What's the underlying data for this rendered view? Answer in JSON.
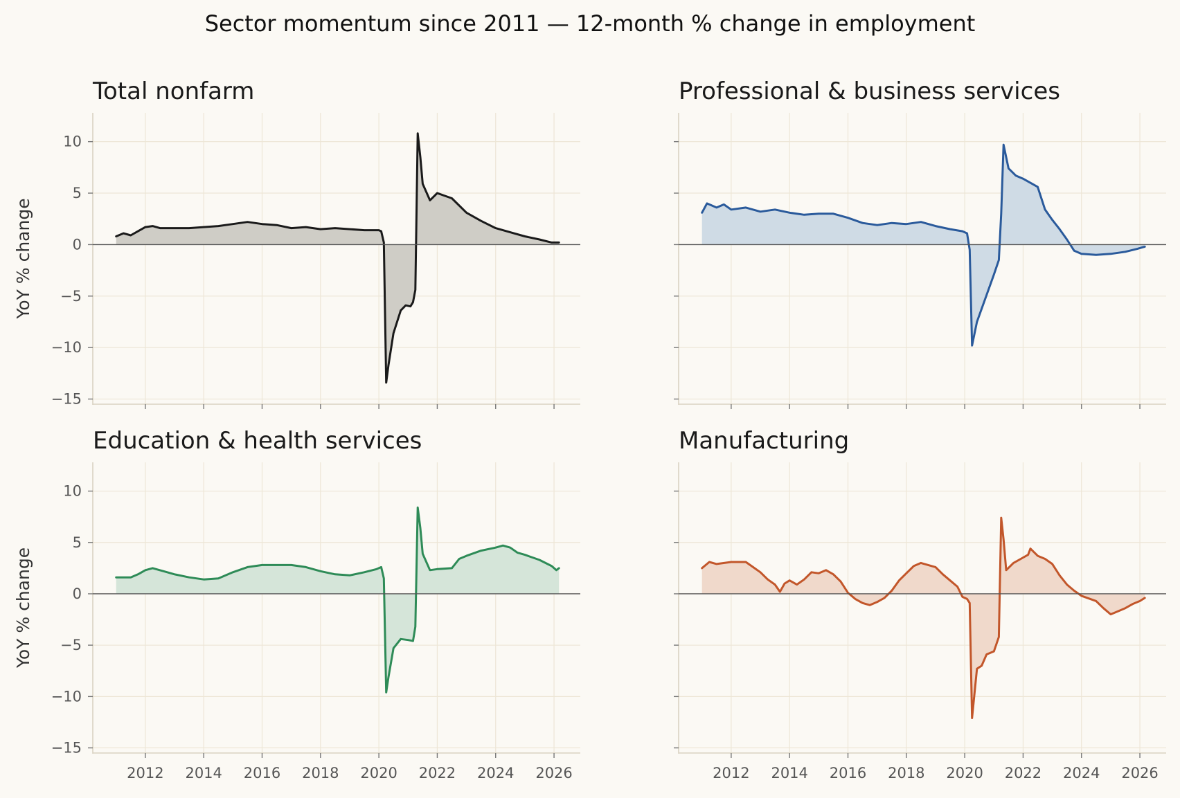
{
  "figure": {
    "title": "Sector momentum since 2011 — 12-month % change in employment",
    "background": "#fbf9f4",
    "grid_color": "#ede6d6",
    "spine_color": "#d9d2c2",
    "tick_label_color": "#555555"
  },
  "chart_data": [
    {
      "type": "area",
      "title": "Total nonfarm",
      "ylabel": "YoY % change",
      "xlabel": "",
      "color": "#1a1a1a",
      "fill": "#cfcdc6",
      "xlim": [
        2010.2,
        2026.9
      ],
      "ylim": [
        -15.5,
        12.8
      ],
      "xticks": [
        2012,
        2014,
        2016,
        2018,
        2020,
        2022,
        2024,
        2026
      ],
      "yticks": [
        10,
        5,
        0,
        -5,
        -10,
        -15
      ],
      "show_xtick_labels": false,
      "show_ytick_labels": true,
      "grid": true,
      "series": [
        {
          "points": [
            [
              2011.0,
              0.8
            ],
            [
              2011.25,
              1.1
            ],
            [
              2011.5,
              0.9
            ],
            [
              2011.75,
              1.3
            ],
            [
              2012.0,
              1.7
            ],
            [
              2012.25,
              1.8
            ],
            [
              2012.5,
              1.6
            ],
            [
              2012.75,
              1.6
            ],
            [
              2013.0,
              1.6
            ],
            [
              2013.5,
              1.6
            ],
            [
              2014.0,
              1.7
            ],
            [
              2014.5,
              1.8
            ],
            [
              2015.0,
              2.0
            ],
            [
              2015.5,
              2.2
            ],
            [
              2016.0,
              2.0
            ],
            [
              2016.5,
              1.9
            ],
            [
              2017.0,
              1.6
            ],
            [
              2017.5,
              1.7
            ],
            [
              2018.0,
              1.5
            ],
            [
              2018.5,
              1.6
            ],
            [
              2019.0,
              1.5
            ],
            [
              2019.5,
              1.4
            ],
            [
              2020.0,
              1.4
            ],
            [
              2020.08,
              1.3
            ],
            [
              2020.17,
              0.2
            ],
            [
              2020.25,
              -13.4
            ],
            [
              2020.33,
              -11.7
            ],
            [
              2020.5,
              -8.6
            ],
            [
              2020.75,
              -6.4
            ],
            [
              2020.92,
              -5.9
            ],
            [
              2021.08,
              -6.0
            ],
            [
              2021.17,
              -5.6
            ],
            [
              2021.25,
              -4.4
            ],
            [
              2021.33,
              10.8
            ],
            [
              2021.42,
              8.5
            ],
            [
              2021.5,
              5.9
            ],
            [
              2021.75,
              4.3
            ],
            [
              2022.0,
              5.0
            ],
            [
              2022.5,
              4.5
            ],
            [
              2023.0,
              3.1
            ],
            [
              2023.5,
              2.3
            ],
            [
              2024.0,
              1.6
            ],
            [
              2024.5,
              1.2
            ],
            [
              2025.0,
              0.8
            ],
            [
              2025.5,
              0.5
            ],
            [
              2025.92,
              0.2
            ],
            [
              2026.17,
              0.2
            ]
          ]
        }
      ]
    },
    {
      "type": "area",
      "title": "Professional & business services",
      "ylabel": "",
      "xlabel": "",
      "color": "#2a5a9b",
      "fill": "#cfdbe5",
      "xlim": [
        2010.2,
        2026.9
      ],
      "ylim": [
        -15.5,
        12.8
      ],
      "xticks": [
        2012,
        2014,
        2016,
        2018,
        2020,
        2022,
        2024,
        2026
      ],
      "yticks": [
        10,
        5,
        0,
        -5,
        -10,
        -15
      ],
      "show_xtick_labels": false,
      "show_ytick_labels": false,
      "grid": true,
      "series": [
        {
          "points": [
            [
              2011.0,
              3.1
            ],
            [
              2011.17,
              4.0
            ],
            [
              2011.5,
              3.6
            ],
            [
              2011.75,
              3.9
            ],
            [
              2012.0,
              3.4
            ],
            [
              2012.5,
              3.6
            ],
            [
              2013.0,
              3.2
            ],
            [
              2013.5,
              3.4
            ],
            [
              2014.0,
              3.1
            ],
            [
              2014.5,
              2.9
            ],
            [
              2015.0,
              3.0
            ],
            [
              2015.5,
              3.0
            ],
            [
              2016.0,
              2.6
            ],
            [
              2016.5,
              2.1
            ],
            [
              2017.0,
              1.9
            ],
            [
              2017.5,
              2.1
            ],
            [
              2018.0,
              2.0
            ],
            [
              2018.5,
              2.2
            ],
            [
              2019.0,
              1.8
            ],
            [
              2019.5,
              1.5
            ],
            [
              2019.92,
              1.3
            ],
            [
              2020.08,
              1.1
            ],
            [
              2020.17,
              -0.5
            ],
            [
              2020.25,
              -9.8
            ],
            [
              2020.42,
              -7.5
            ],
            [
              2020.75,
              -4.9
            ],
            [
              2021.0,
              -2.9
            ],
            [
              2021.17,
              -1.5
            ],
            [
              2021.25,
              3.0
            ],
            [
              2021.33,
              9.7
            ],
            [
              2021.5,
              7.4
            ],
            [
              2021.75,
              6.7
            ],
            [
              2022.0,
              6.4
            ],
            [
              2022.5,
              5.6
            ],
            [
              2022.75,
              3.4
            ],
            [
              2023.0,
              2.4
            ],
            [
              2023.25,
              1.5
            ],
            [
              2023.5,
              0.5
            ],
            [
              2023.75,
              -0.6
            ],
            [
              2024.0,
              -0.9
            ],
            [
              2024.5,
              -1.0
            ],
            [
              2025.0,
              -0.9
            ],
            [
              2025.5,
              -0.7
            ],
            [
              2025.92,
              -0.4
            ],
            [
              2026.17,
              -0.2
            ]
          ]
        }
      ]
    },
    {
      "type": "area",
      "title": "Education & health services",
      "ylabel": "YoY % change",
      "xlabel": "",
      "color": "#2e8b57",
      "fill": "#d5e5d9",
      "xlim": [
        2010.2,
        2026.9
      ],
      "ylim": [
        -15.5,
        12.8
      ],
      "xticks": [
        2012,
        2014,
        2016,
        2018,
        2020,
        2022,
        2024,
        2026
      ],
      "yticks": [
        10,
        5,
        0,
        -5,
        -10,
        -15
      ],
      "show_xtick_labels": true,
      "show_ytick_labels": true,
      "grid": true,
      "series": [
        {
          "points": [
            [
              2011.0,
              1.6
            ],
            [
              2011.5,
              1.6
            ],
            [
              2011.75,
              1.9
            ],
            [
              2012.0,
              2.3
            ],
            [
              2012.25,
              2.5
            ],
            [
              2012.75,
              2.1
            ],
            [
              2013.0,
              1.9
            ],
            [
              2013.5,
              1.6
            ],
            [
              2014.0,
              1.4
            ],
            [
              2014.5,
              1.5
            ],
            [
              2015.0,
              2.1
            ],
            [
              2015.5,
              2.6
            ],
            [
              2016.0,
              2.8
            ],
            [
              2016.5,
              2.8
            ],
            [
              2017.0,
              2.8
            ],
            [
              2017.5,
              2.6
            ],
            [
              2018.0,
              2.2
            ],
            [
              2018.5,
              1.9
            ],
            [
              2019.0,
              1.8
            ],
            [
              2019.5,
              2.1
            ],
            [
              2019.92,
              2.4
            ],
            [
              2020.08,
              2.6
            ],
            [
              2020.17,
              1.5
            ],
            [
              2020.25,
              -9.6
            ],
            [
              2020.33,
              -8.1
            ],
            [
              2020.5,
              -5.3
            ],
            [
              2020.75,
              -4.4
            ],
            [
              2021.0,
              -4.5
            ],
            [
              2021.17,
              -4.6
            ],
            [
              2021.25,
              -3.2
            ],
            [
              2021.33,
              8.4
            ],
            [
              2021.42,
              6.4
            ],
            [
              2021.5,
              3.9
            ],
            [
              2021.75,
              2.3
            ],
            [
              2022.0,
              2.4
            ],
            [
              2022.5,
              2.5
            ],
            [
              2022.75,
              3.4
            ],
            [
              2023.0,
              3.7
            ],
            [
              2023.5,
              4.2
            ],
            [
              2024.0,
              4.5
            ],
            [
              2024.25,
              4.7
            ],
            [
              2024.5,
              4.5
            ],
            [
              2024.75,
              4.0
            ],
            [
              2025.0,
              3.8
            ],
            [
              2025.5,
              3.3
            ],
            [
              2025.92,
              2.7
            ],
            [
              2026.08,
              2.3
            ],
            [
              2026.17,
              2.5
            ]
          ]
        }
      ]
    },
    {
      "type": "area",
      "title": "Manufacturing",
      "ylabel": "",
      "xlabel": "",
      "color": "#c2562a",
      "fill": "#f0d9cb",
      "xlim": [
        2010.2,
        2026.9
      ],
      "ylim": [
        -15.5,
        12.8
      ],
      "xticks": [
        2012,
        2014,
        2016,
        2018,
        2020,
        2022,
        2024,
        2026
      ],
      "yticks": [
        10,
        5,
        0,
        -5,
        -10,
        -15
      ],
      "show_xtick_labels": true,
      "show_ytick_labels": false,
      "grid": true,
      "series": [
        {
          "points": [
            [
              2011.0,
              2.5
            ],
            [
              2011.25,
              3.1
            ],
            [
              2011.5,
              2.9
            ],
            [
              2012.0,
              3.1
            ],
            [
              2012.5,
              3.1
            ],
            [
              2012.75,
              2.6
            ],
            [
              2013.0,
              2.1
            ],
            [
              2013.25,
              1.4
            ],
            [
              2013.5,
              0.9
            ],
            [
              2013.67,
              0.2
            ],
            [
              2013.83,
              1.0
            ],
            [
              2014.0,
              1.3
            ],
            [
              2014.25,
              0.9
            ],
            [
              2014.5,
              1.4
            ],
            [
              2014.75,
              2.1
            ],
            [
              2015.0,
              2.0
            ],
            [
              2015.25,
              2.3
            ],
            [
              2015.5,
              1.9
            ],
            [
              2015.75,
              1.2
            ],
            [
              2016.0,
              0.1
            ],
            [
              2016.25,
              -0.5
            ],
            [
              2016.5,
              -0.9
            ],
            [
              2016.75,
              -1.1
            ],
            [
              2017.0,
              -0.8
            ],
            [
              2017.25,
              -0.4
            ],
            [
              2017.5,
              0.3
            ],
            [
              2017.75,
              1.3
            ],
            [
              2018.0,
              2.0
            ],
            [
              2018.25,
              2.7
            ],
            [
              2018.5,
              3.0
            ],
            [
              2018.75,
              2.8
            ],
            [
              2019.0,
              2.6
            ],
            [
              2019.25,
              1.9
            ],
            [
              2019.5,
              1.3
            ],
            [
              2019.75,
              0.7
            ],
            [
              2019.92,
              -0.3
            ],
            [
              2020.08,
              -0.5
            ],
            [
              2020.17,
              -0.9
            ],
            [
              2020.25,
              -12.1
            ],
            [
              2020.42,
              -7.3
            ],
            [
              2020.58,
              -7.0
            ],
            [
              2020.75,
              -5.9
            ],
            [
              2021.0,
              -5.6
            ],
            [
              2021.17,
              -4.2
            ],
            [
              2021.25,
              7.4
            ],
            [
              2021.33,
              5.3
            ],
            [
              2021.42,
              2.3
            ],
            [
              2021.67,
              3.0
            ],
            [
              2021.92,
              3.4
            ],
            [
              2022.17,
              3.8
            ],
            [
              2022.25,
              4.4
            ],
            [
              2022.5,
              3.7
            ],
            [
              2022.75,
              3.4
            ],
            [
              2023.0,
              2.9
            ],
            [
              2023.25,
              1.8
            ],
            [
              2023.5,
              0.9
            ],
            [
              2023.75,
              0.3
            ],
            [
              2024.0,
              -0.2
            ],
            [
              2024.5,
              -0.7
            ],
            [
              2024.75,
              -1.4
            ],
            [
              2025.0,
              -2.0
            ],
            [
              2025.25,
              -1.7
            ],
            [
              2025.5,
              -1.4
            ],
            [
              2025.75,
              -1.0
            ],
            [
              2026.0,
              -0.7
            ],
            [
              2026.17,
              -0.4
            ]
          ]
        }
      ]
    }
  ]
}
